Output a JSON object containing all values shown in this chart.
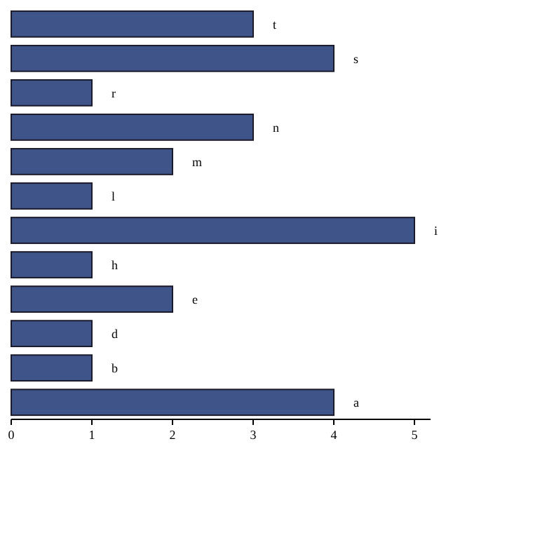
{
  "chart_data": {
    "type": "bar",
    "orientation": "horizontal",
    "categories": [
      "t",
      "s",
      "r",
      "n",
      "m",
      "l",
      "i",
      "h",
      "e",
      "d",
      "b",
      "a"
    ],
    "values": [
      3,
      4,
      1,
      3,
      2,
      1,
      5,
      1,
      2,
      1,
      1,
      4
    ],
    "color": "#3f5489",
    "xlim": [
      0,
      5.2
    ],
    "xticks": [
      0,
      1,
      2,
      3,
      4,
      5
    ]
  }
}
